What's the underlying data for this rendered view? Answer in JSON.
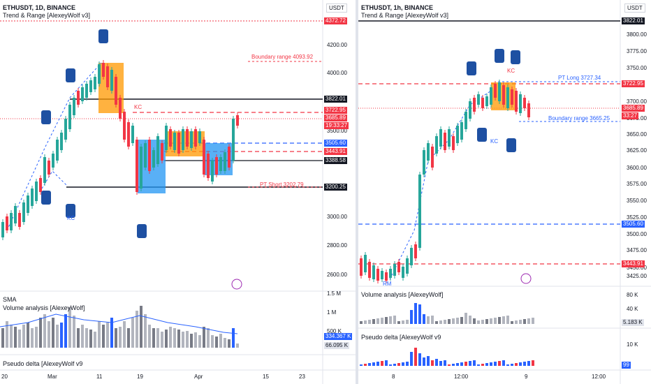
{
  "left": {
    "symbol": "ETHUSDT, 1D, BINANCE",
    "indicator": "Trend & Range [AlexeyWolf v3]",
    "currency": "USDT",
    "price_axis": [
      "4200.00",
      "4000.00",
      "3500.00",
      "3000.00",
      "2800.00",
      "2600.00"
    ],
    "price_tags": [
      {
        "text": "4372.72",
        "bg": "#f23645"
      },
      {
        "text": "3822.01",
        "bg": "#131722"
      },
      {
        "text": "3722.95",
        "bg": "#f23645"
      },
      {
        "text": "3685.89",
        "bg": "#f23645"
      },
      {
        "text": "19:33:27",
        "bg": "#f23645"
      },
      {
        "text": "3505.60",
        "bg": "#2962ff"
      },
      {
        "text": "3443.91",
        "bg": "#f23645"
      },
      {
        "text": "3388.58",
        "bg": "#131722"
      },
      {
        "text": "3200.25",
        "bg": "#131722"
      }
    ],
    "annotations": {
      "boundary": "Boundary range 4093.92",
      "pt_short": "PT Short 3202.79",
      "kc1": "KC",
      "kc2": "KC"
    },
    "sma_label": "SMA",
    "volume_label": "Volume analysis [AlexeyWolf]",
    "volume_axis": [
      "1.5 M",
      "1 M",
      "500 K"
    ],
    "volume_tags": [
      {
        "text": "334.367 K",
        "bg": "#2962ff"
      },
      {
        "text": "66.095 K",
        "bg": "#e0e3eb"
      }
    ],
    "delta_label": "Pseudo delta [AlexeyWolf v9",
    "time_axis": [
      "20",
      "Mar",
      "11",
      "19",
      "Apr",
      "15",
      "23"
    ]
  },
  "right": {
    "symbol": "ETHUSDT, 1h, BINANCE",
    "indicator": "Trend & Range [AlexeyWolf v3]",
    "currency": "USDT",
    "price_axis": [
      "3800.00",
      "3775.00",
      "3750.00",
      "3700.00",
      "3675.00",
      "3650.00",
      "3625.00",
      "3600.00",
      "3575.00",
      "3550.00",
      "3525.00",
      "3500.00",
      "3475.00",
      "3450.00",
      "3425.00"
    ],
    "price_tags": [
      {
        "text": "3822.01",
        "bg": "#131722"
      },
      {
        "text": "3722.95",
        "bg": "#f23645"
      },
      {
        "text": "3685.89",
        "bg": "#f23645"
      },
      {
        "text": "33:27",
        "bg": "#f23645"
      },
      {
        "text": "3505.60",
        "bg": "#2962ff"
      },
      {
        "text": "3443.91",
        "bg": "#f23645"
      }
    ],
    "annotations": {
      "pt_long": "PT Long 3727.34",
      "boundary": "Boundary range 3665.25",
      "kc1": "KC",
      "kc2": "KC",
      "rm": "RM"
    },
    "volume_label": "Volume analysis [AlexeyWolf]",
    "volume_axis": [
      "80 K",
      "40 K"
    ],
    "volume_tag": "5.183 K",
    "delta_label": "Pseudo delta [AlexeyWolf v9",
    "delta_axis": [
      "10 K"
    ],
    "delta_tag": "99",
    "time_axis": [
      "8",
      "12:00",
      "9",
      "12:00"
    ]
  },
  "colors": {
    "bull": "#26a69a",
    "bear": "#f23645",
    "blue": "#2962ff",
    "orange": "#ff9800"
  }
}
